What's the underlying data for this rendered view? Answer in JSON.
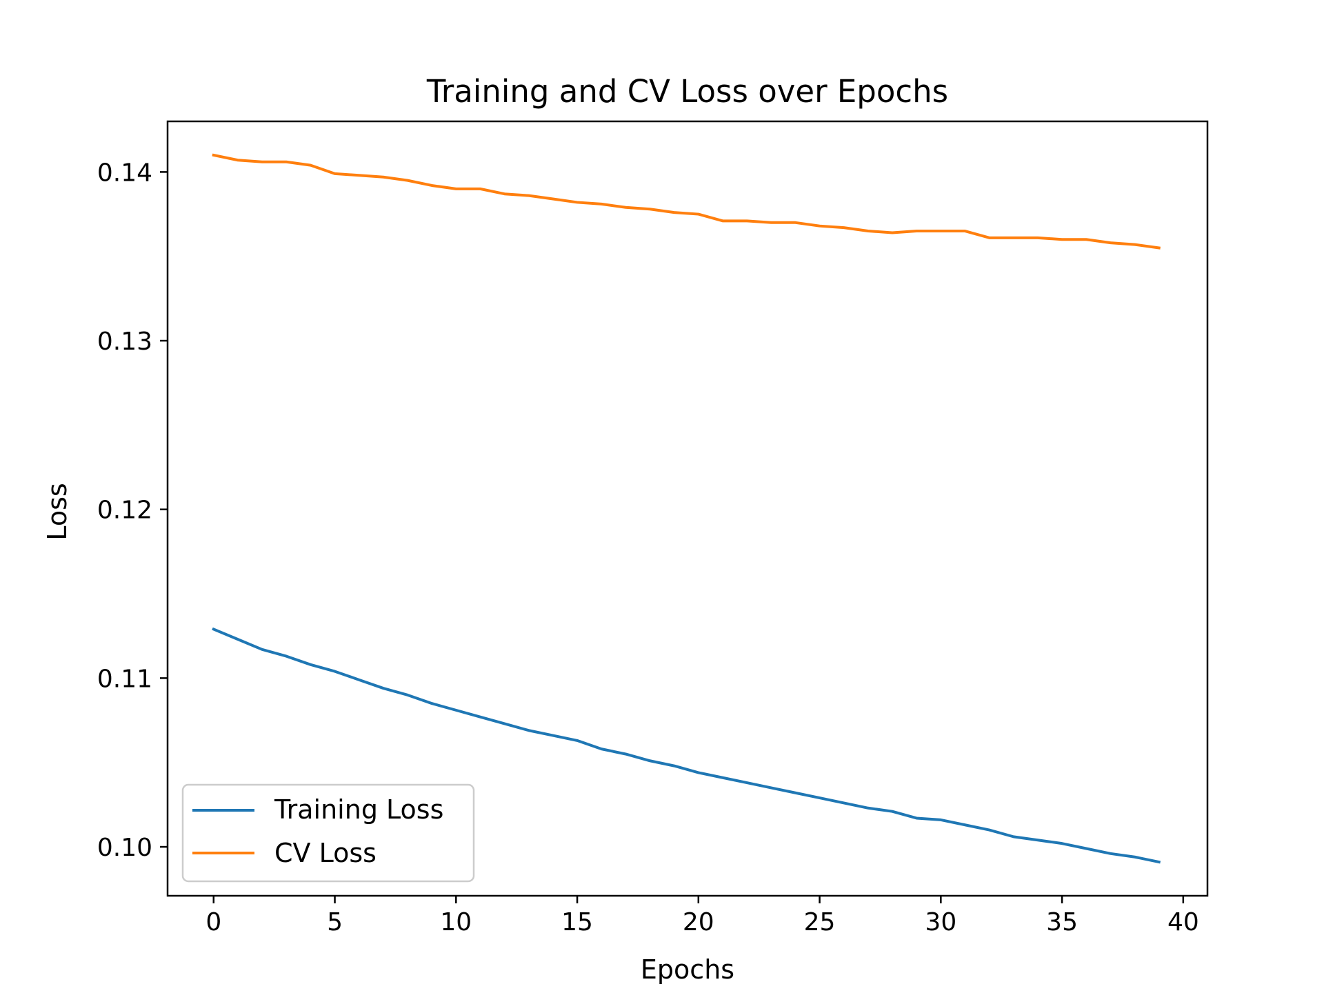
{
  "chart_data": {
    "type": "line",
    "title": "Training and CV Loss over Epochs",
    "xlabel": "Epochs",
    "ylabel": "Loss",
    "xlim": [
      -1.9,
      41.0
    ],
    "ylim": [
      0.0971,
      0.143
    ],
    "xticks": [
      0,
      5,
      10,
      15,
      20,
      25,
      30,
      35,
      40
    ],
    "xtick_labels": [
      "0",
      "5",
      "10",
      "15",
      "20",
      "25",
      "30",
      "35",
      "40"
    ],
    "yticks": [
      0.1,
      0.11,
      0.12,
      0.13,
      0.14
    ],
    "ytick_labels": [
      "0.10",
      "0.11",
      "0.12",
      "0.13",
      "0.14"
    ],
    "grid": false,
    "legend_position": "lower-left",
    "x": [
      0,
      1,
      2,
      3,
      4,
      5,
      6,
      7,
      8,
      9,
      10,
      11,
      12,
      13,
      14,
      15,
      16,
      17,
      18,
      19,
      20,
      21,
      22,
      23,
      24,
      25,
      26,
      27,
      28,
      29,
      30,
      31,
      32,
      33,
      34,
      35,
      36,
      37,
      38,
      39
    ],
    "series": [
      {
        "name": "Training Loss",
        "color": "#1f77b4",
        "values": [
          0.1129,
          0.1123,
          0.1117,
          0.1113,
          0.1108,
          0.1104,
          0.1099,
          0.1094,
          0.109,
          0.1085,
          0.1081,
          0.1077,
          0.1073,
          0.1069,
          0.1066,
          0.1063,
          0.1058,
          0.1055,
          0.1051,
          0.1048,
          0.1044,
          0.1041,
          0.1038,
          0.1035,
          0.1032,
          0.1029,
          0.1026,
          0.1023,
          0.1021,
          0.1017,
          0.1016,
          0.1013,
          0.101,
          0.1006,
          0.1004,
          0.1002,
          0.0999,
          0.0996,
          0.0994,
          0.0991
        ]
      },
      {
        "name": "CV Loss",
        "color": "#ff7f0e",
        "values": [
          0.141,
          0.1407,
          0.1406,
          0.1406,
          0.1404,
          0.1399,
          0.1398,
          0.1397,
          0.1395,
          0.1392,
          0.139,
          0.139,
          0.1387,
          0.1386,
          0.1384,
          0.1382,
          0.1381,
          0.1379,
          0.1378,
          0.1376,
          0.1375,
          0.1371,
          0.1371,
          0.137,
          0.137,
          0.1368,
          0.1367,
          0.1365,
          0.1364,
          0.1365,
          0.1365,
          0.1365,
          0.1361,
          0.1361,
          0.1361,
          0.136,
          0.136,
          0.1358,
          0.1357,
          0.1355
        ]
      }
    ]
  }
}
